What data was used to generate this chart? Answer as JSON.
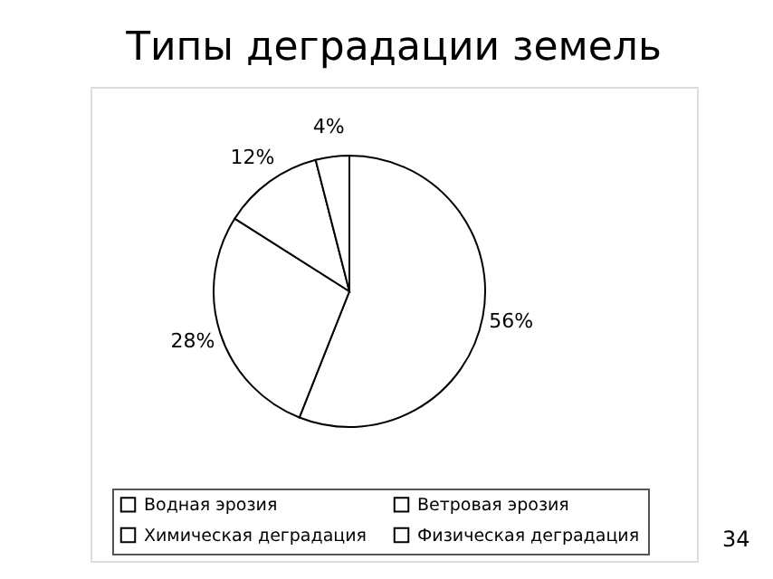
{
  "chart_data": {
    "type": "pie",
    "title": "Типы деградации земель",
    "categories": [
      "Водная эрозия",
      "Ветровая эрозия",
      "Химическая деградация",
      "Физическая деградация"
    ],
    "values": [
      56,
      28,
      12,
      4
    ],
    "colors": [
      "#ffffff",
      "#ffffff",
      "#ffffff",
      "#ffffff"
    ],
    "value_labels": [
      "56%",
      "28%",
      "12%",
      "4%"
    ],
    "legend": "bottom",
    "annotations": [
      "34"
    ]
  }
}
